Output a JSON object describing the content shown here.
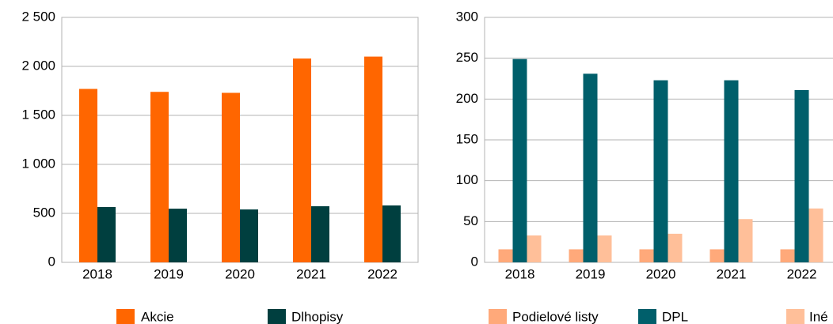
{
  "chart_data": [
    {
      "type": "bar",
      "categories": [
        "2018",
        "2019",
        "2020",
        "2021",
        "2022"
      ],
      "series": [
        {
          "name": "Akcie",
          "color": "#ff6600",
          "values": [
            1770,
            1740,
            1730,
            2080,
            2100
          ]
        },
        {
          "name": "Dlhopisy",
          "color": "#003f3f",
          "values": [
            565,
            548,
            540,
            573,
            581
          ]
        }
      ],
      "ylim": [
        0,
        2500
      ],
      "yticks": [
        0,
        500,
        {
          "value": 1000,
          "label": "1 000"
        },
        {
          "value": 1500,
          "label": "1 500"
        },
        {
          "value": 2000,
          "label": "2 000"
        },
        {
          "value": 2500,
          "label": "2 500"
        }
      ],
      "grid": true,
      "legend": "bottom"
    },
    {
      "type": "bar",
      "categories": [
        "2018",
        "2019",
        "2020",
        "2021",
        "2022"
      ],
      "series": [
        {
          "name": "Podielové listy",
          "color": "#ffa97a",
          "values": [
            16,
            16,
            16,
            16,
            16
          ]
        },
        {
          "name": "DPL",
          "color": "#005f6b",
          "values": [
            249,
            231,
            223,
            223,
            211
          ]
        },
        {
          "name": "Iné",
          "color": "#ffbf99",
          "values": [
            33,
            33,
            35,
            53,
            66
          ]
        }
      ],
      "ylim": [
        0,
        300
      ],
      "yticks": [
        0,
        50,
        100,
        150,
        200,
        250,
        300
      ],
      "grid": true,
      "legend": "bottom"
    }
  ]
}
